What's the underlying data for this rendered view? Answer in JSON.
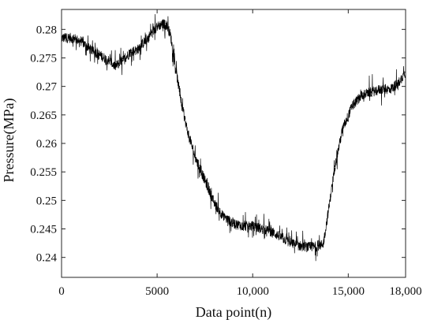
{
  "chart_data": {
    "type": "line",
    "title": "",
    "xlabel": "Data point(n)",
    "ylabel": "Pressure(MPa)",
    "xlim": [
      0,
      18000
    ],
    "ylim": [
      0.2365,
      0.2835
    ],
    "grid": false,
    "legend": "none",
    "x_ticks": [
      0,
      5000,
      10000,
      15000,
      18000
    ],
    "x_tick_labels": [
      "0",
      "5000",
      "10,000",
      "15,000",
      "18,000"
    ],
    "y_ticks": [
      0.24,
      0.245,
      0.25,
      0.255,
      0.26,
      0.265,
      0.27,
      0.275,
      0.28
    ],
    "y_tick_labels": [
      "0.24",
      "0.245",
      "0.25",
      "0.255",
      "0.26",
      "0.265",
      "0.27",
      "0.275",
      "0.28"
    ],
    "line_color": "#000000",
    "series": [
      {
        "name": "",
        "x": [
          0,
          500,
          1000,
          1500,
          2000,
          2500,
          2800,
          3200,
          3600,
          4000,
          4500,
          5000,
          5300,
          5500,
          5700,
          6000,
          6300,
          6600,
          7000,
          7500,
          8000,
          8500,
          9000,
          9500,
          10000,
          10500,
          11000,
          11500,
          12000,
          12500,
          13000,
          13500,
          13700,
          14000,
          14300,
          14700,
          15200,
          15700,
          16200,
          16700,
          17200,
          17600,
          18000
        ],
        "y": [
          0.2785,
          0.2785,
          0.278,
          0.2765,
          0.2755,
          0.2745,
          0.2735,
          0.2745,
          0.276,
          0.2765,
          0.2785,
          0.2805,
          0.281,
          0.2808,
          0.279,
          0.2725,
          0.2665,
          0.262,
          0.2575,
          0.2535,
          0.2495,
          0.247,
          0.246,
          0.2455,
          0.2455,
          0.245,
          0.2445,
          0.2435,
          0.2425,
          0.242,
          0.2418,
          0.242,
          0.2425,
          0.249,
          0.256,
          0.2625,
          0.2665,
          0.2685,
          0.269,
          0.2695,
          0.2695,
          0.2705,
          0.2725
        ]
      }
    ]
  }
}
